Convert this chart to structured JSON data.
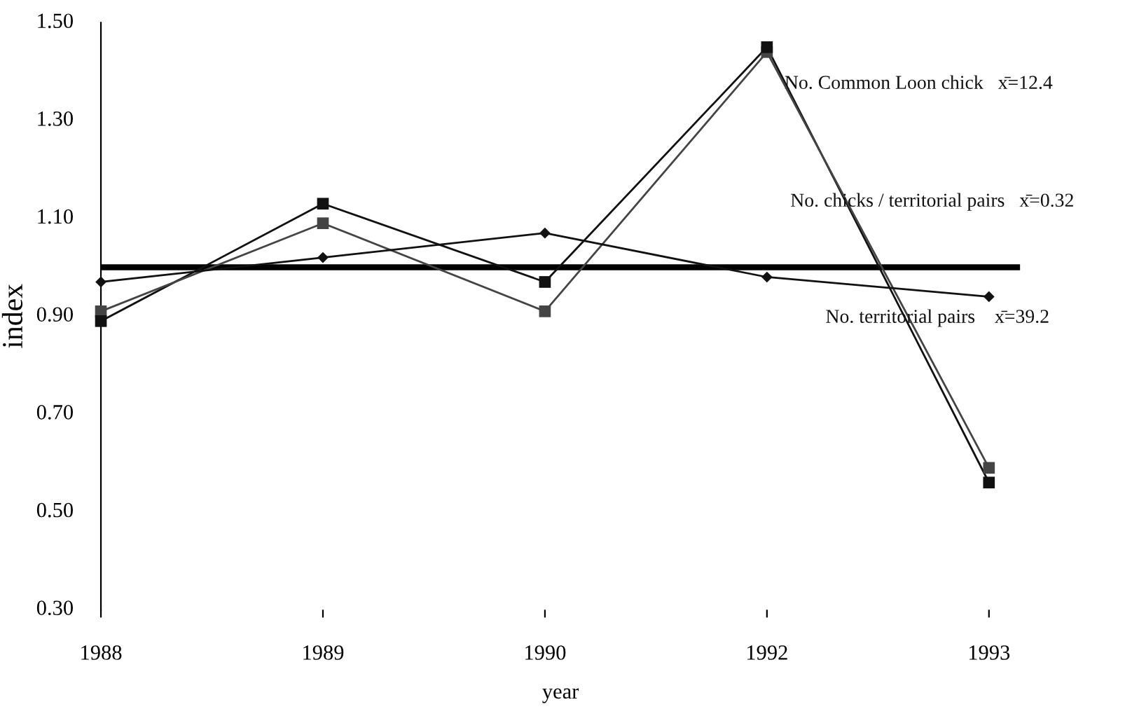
{
  "chart_data": {
    "type": "line",
    "xlabel": "year",
    "ylabel": "index",
    "categories": [
      "1988",
      "1989",
      "1990",
      "1992",
      "1993"
    ],
    "series": [
      {
        "name": "No. Common Loon chick   x̄=12.4",
        "color": "#111111",
        "marker": "square",
        "values": [
          0.89,
          1.13,
          0.97,
          1.45,
          0.56
        ]
      },
      {
        "name": "No. chicks / territorial pairs   x̄=0.32",
        "color": "#444444",
        "marker": "square",
        "values": [
          0.91,
          1.09,
          0.91,
          1.44,
          0.59
        ]
      },
      {
        "name": "No. territorial pairs    x̄=39.2",
        "color": "#111111",
        "marker": "diamond",
        "values": [
          0.97,
          1.02,
          1.07,
          0.98,
          0.94
        ]
      }
    ],
    "ylim": [
      0.3,
      1.5
    ],
    "yticks": [
      {
        "value": 0.3,
        "label": "0.30"
      },
      {
        "value": 0.5,
        "label": "0.50"
      },
      {
        "value": 0.7,
        "label": "0.70"
      },
      {
        "value": 0.9,
        "label": "0.90"
      },
      {
        "value": 1.1,
        "label": "1.10"
      },
      {
        "value": 1.3,
        "label": "1.30"
      },
      {
        "value": 1.5,
        "label": "1.50"
      }
    ],
    "ref_lines": [
      {
        "axis": "y",
        "value": 1.0,
        "color": "#000000"
      }
    ],
    "grid": false
  }
}
